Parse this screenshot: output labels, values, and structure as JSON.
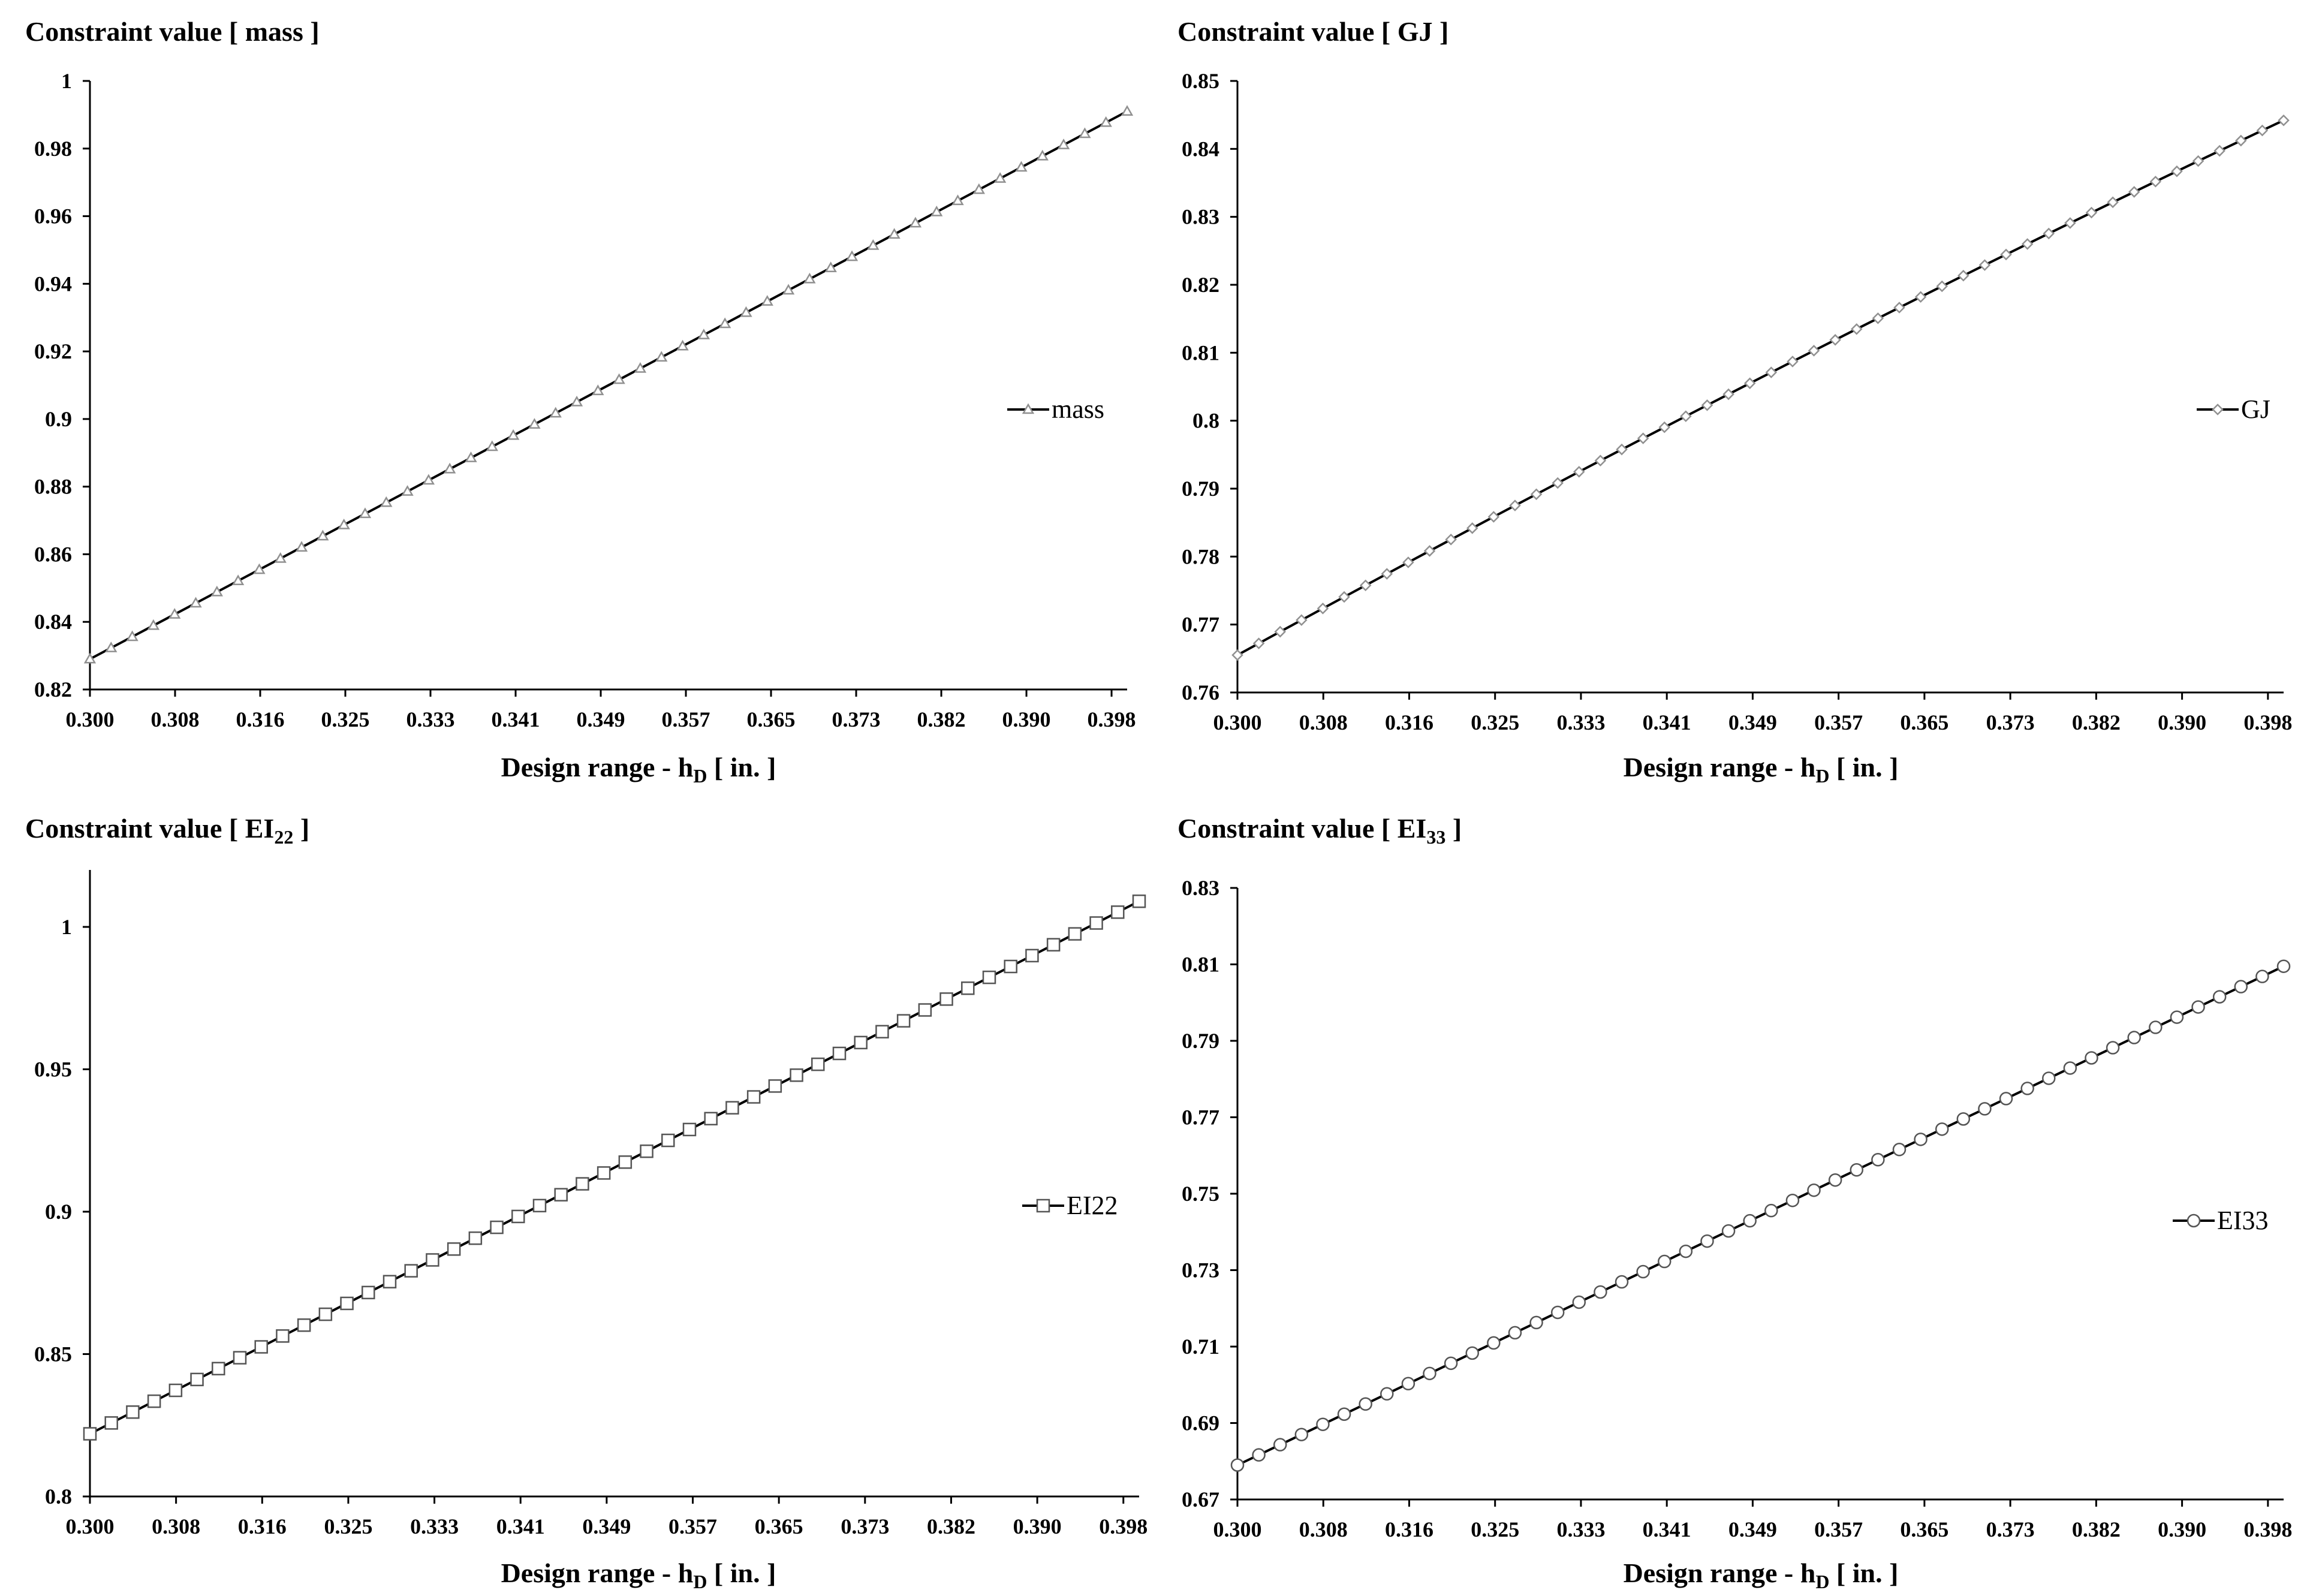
{
  "chart_data": [
    {
      "type": "line",
      "title": "Constraint value [ mass ]",
      "xlabel_prefix": "Design range - h",
      "xlabel_sub": "D",
      "xlabel_suffix": " [ in. ]",
      "x_ticks": [
        "0.300",
        "0.308",
        "0.316",
        "0.325",
        "0.333",
        "0.341",
        "0.349",
        "0.357",
        "0.365",
        "0.373",
        "0.382",
        "0.390",
        "0.398"
      ],
      "y_ticks": [
        "0.82",
        "0.84",
        "0.86",
        "0.88",
        "0.9",
        "0.92",
        "0.94",
        "0.96",
        "0.98",
        "1"
      ],
      "xlim": [
        0.3,
        0.4
      ],
      "ylim": [
        0.82,
        1.0
      ],
      "marker": "triangle",
      "legend_position": "right",
      "series": [
        {
          "name": "mass",
          "x_start": 0.3,
          "x_end": 0.4,
          "points": 50,
          "y_start": 0.829,
          "y_end": 0.991,
          "curve": 0
        }
      ]
    },
    {
      "type": "line",
      "title": "Constraint value [ GJ ]",
      "xlabel_prefix": "Design range - h",
      "xlabel_sub": "D",
      "xlabel_suffix": " [ in. ]",
      "x_ticks": [
        "0.300",
        "0.308",
        "0.316",
        "0.325",
        "0.333",
        "0.341",
        "0.349",
        "0.357",
        "0.365",
        "0.373",
        "0.382",
        "0.390",
        "0.398"
      ],
      "y_ticks": [
        "0.76",
        "0.77",
        "0.78",
        "0.79",
        "0.8",
        "0.81",
        "0.82",
        "0.83",
        "0.84",
        "0.85"
      ],
      "xlim": [
        0.3,
        0.4
      ],
      "ylim": [
        0.76,
        0.85
      ],
      "marker": "diamond",
      "legend_position": "right",
      "series": [
        {
          "name": "GJ",
          "x_start": 0.3,
          "x_end": 0.4,
          "points": 50,
          "y_start": 0.7655,
          "y_end": 0.8442,
          "curve": 0.0185
        }
      ]
    },
    {
      "type": "line",
      "title_prefix": "Constraint value [ EI",
      "title_sub": "22",
      "title_suffix": " ]",
      "xlabel_prefix": "Design range - h",
      "xlabel_sub": "D",
      "xlabel_suffix": " [ in. ]",
      "x_ticks": [
        "0.300",
        "0.308",
        "0.316",
        "0.325",
        "0.333",
        "0.341",
        "0.349",
        "0.357",
        "0.365",
        "0.373",
        "0.382",
        "0.390",
        "0.398"
      ],
      "y_ticks": [
        "0.8",
        "0.85",
        "0.9",
        "0.95",
        "1"
      ],
      "xlim": [
        0.3,
        0.4
      ],
      "ylim": [
        0.8,
        1.02
      ],
      "marker": "square",
      "legend_position": "right",
      "series": [
        {
          "name": "EI22",
          "x_start": 0.3,
          "x_end": 0.4,
          "points": 50,
          "y_start": 0.822,
          "y_end": 1.009,
          "curve": 0
        }
      ]
    },
    {
      "type": "line",
      "title_prefix": "Constraint value [ EI",
      "title_sub": "33",
      "title_suffix": " ]",
      "xlabel_prefix": "Design range - h",
      "xlabel_sub": "D",
      "xlabel_suffix": " [ in. ]",
      "x_ticks": [
        "0.300",
        "0.308",
        "0.316",
        "0.325",
        "0.333",
        "0.341",
        "0.349",
        "0.357",
        "0.365",
        "0.373",
        "0.382",
        "0.390",
        "0.398"
      ],
      "y_ticks": [
        "0.67",
        "0.69",
        "0.71",
        "0.73",
        "0.75",
        "0.77",
        "0.79",
        "0.81",
        "0.83"
      ],
      "xlim": [
        0.3,
        0.4
      ],
      "ylim": [
        0.67,
        0.83
      ],
      "marker": "circle",
      "legend_position": "right",
      "series": [
        {
          "name": "EI33",
          "x_start": 0.3,
          "x_end": 0.4,
          "points": 50,
          "y_start": 0.679,
          "y_end": 0.8095,
          "curve": 0
        }
      ]
    }
  ]
}
